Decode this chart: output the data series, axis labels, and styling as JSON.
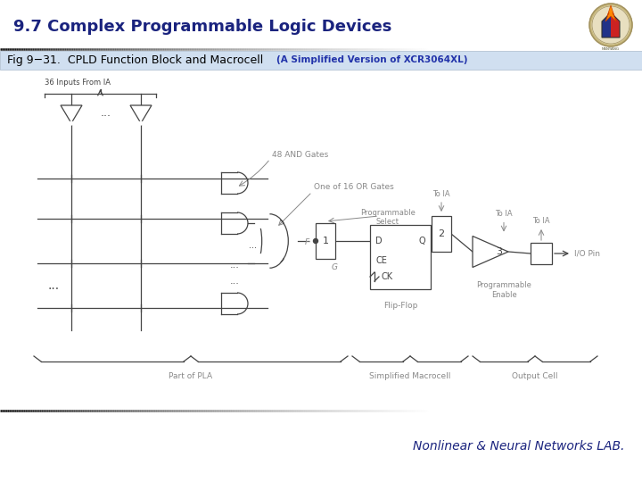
{
  "title": "9.7 Complex Programmable Logic Devices",
  "subtitle": "Fig 9−31.  CPLD Function Block and Macrocell",
  "subtitle_extra": "(A Simplified Version of XCR3064XL)",
  "footer": "Nonlinear & Neural Networks LAB.",
  "title_color": "#1a237e",
  "subtitle_color": "#000000",
  "subtitle_extra_color": "#2233aa",
  "footer_color": "#1a237e",
  "bg_color": "#ffffff",
  "subheader_bg": "#d0dff0",
  "title_fontsize": 13,
  "subtitle_fontsize": 9,
  "footer_fontsize": 10,
  "line_color": "#444444",
  "label_color": "#888888",
  "dark_color": "#333333"
}
